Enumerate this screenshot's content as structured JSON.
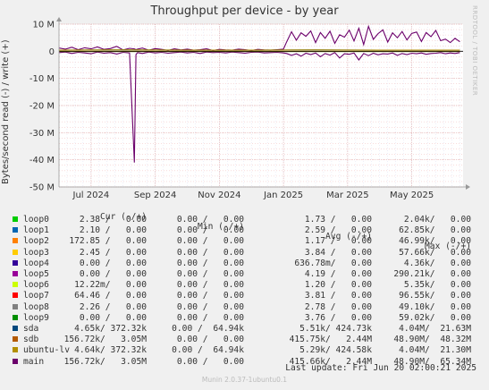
{
  "title": "Throughput per device - by year",
  "watermark": "RRDTOOL / TOBI OETIKER",
  "footer": "Munin 2.0.37-1ubuntu0.1",
  "last_update": "Last update: Fri Jun 20 02:00:21 2025",
  "legend_headers": {
    "cur": "Cur (-/+)",
    "min": "Min (-/+)",
    "avg": "Avg (-/+)",
    "max": "Max (-/+)"
  },
  "legend": [
    {
      "name": "loop0",
      "color": "#00cc00",
      "cur": "2.38 /   0.00",
      "min": "0.00 /   0.00",
      "avg": "1.73 /   0.00",
      "max": "2.04k/   0.00"
    },
    {
      "name": "loop1",
      "color": "#0066b3",
      "cur": "2.10 /   0.00",
      "min": "0.00 /   0.00",
      "avg": "2.59 /   0.00",
      "max": "62.85k/   0.00"
    },
    {
      "name": "loop2",
      "color": "#ff8000",
      "cur": "172.85 /   0.00",
      "min": "0.00 /   0.00",
      "avg": "1.17 /   0.00",
      "max": "46.99k/   0.00"
    },
    {
      "name": "loop3",
      "color": "#ffcc00",
      "cur": "2.45 /   0.00",
      "min": "0.00 /   0.00",
      "avg": "3.84 /   0.00",
      "max": "57.66k/   0.00"
    },
    {
      "name": "loop4",
      "color": "#330099",
      "cur": "0.00 /   0.00",
      "min": "0.00 /   0.00",
      "avg": "636.78m/   0.00",
      "max": "4.36k/   0.00"
    },
    {
      "name": "loop5",
      "color": "#990099",
      "cur": "0.00 /   0.00",
      "min": "0.00 /   0.00",
      "avg": "4.19 /   0.00",
      "max": "290.21k/   0.00"
    },
    {
      "name": "loop6",
      "color": "#ccff00",
      "cur": "12.22m/   0.00",
      "min": "0.00 /   0.00",
      "avg": "1.20 /   0.00",
      "max": "5.35k/   0.00"
    },
    {
      "name": "loop7",
      "color": "#ff0000",
      "cur": "64.46 /   0.00",
      "min": "0.00 /   0.00",
      "avg": "3.81 /   0.00",
      "max": "96.55k/   0.00"
    },
    {
      "name": "loop8",
      "color": "#808080",
      "cur": "2.26 /   0.00",
      "min": "0.00 /   0.00",
      "avg": "2.78 /   0.00",
      "max": "49.10k/   0.00"
    },
    {
      "name": "loop9",
      "color": "#008f00",
      "cur": "0.00 /   0.00",
      "min": "0.00 /   0.00",
      "avg": "3.76 /   0.00",
      "max": "59.02k/   0.00"
    },
    {
      "name": "sda",
      "color": "#00487d",
      "cur": "4.65k/ 372.32k",
      "min": "0.00 /  64.94k",
      "avg": "5.51k/ 424.73k",
      "max": "4.04M/  21.63M"
    },
    {
      "name": "sdb",
      "color": "#b35a00",
      "cur": "156.72k/   3.05M",
      "min": "0.00 /   0.00",
      "avg": "415.75k/   2.44M",
      "max": "48.90M/  48.32M"
    },
    {
      "name": "ubuntu-lv",
      "color": "#b38f00",
      "cur": "4.64k/ 372.32k",
      "min": "0.00 /  64.94k",
      "avg": "5.29k/ 424.58k",
      "max": "4.04M/  21.30M"
    },
    {
      "name": "main",
      "color": "#6b006b",
      "cur": "156.72k/   3.05M",
      "min": "0.00 /   0.00",
      "avg": "415.66k/   2.44M",
      "max": "48.90M/  65.34M"
    }
  ],
  "chart_data": {
    "type": "line",
    "title": "Throughput per device - by year",
    "ylabel": "Bytes/second read (-) / write (+)",
    "ylim": [
      -50,
      10
    ],
    "y_unit": "M",
    "y_ticks": [
      10,
      0,
      -10,
      -20,
      -30,
      -40,
      -50
    ],
    "y_tick_labels": [
      "10 M",
      "0",
      "-10 M",
      "-20 M",
      "-30 M",
      "-40 M",
      "-50 M"
    ],
    "x_range_months": [
      0,
      12.6
    ],
    "x_ticks": [
      1,
      3,
      5,
      7,
      9,
      11
    ],
    "x_tick_labels": [
      "Jul 2024",
      "Sep 2024",
      "Nov 2024",
      "Jan 2025",
      "Mar 2025",
      "May 2025"
    ],
    "grid": true,
    "series": [
      {
        "name": "main",
        "color": "#6b006b",
        "x": [
          0.0,
          0.2,
          0.4,
          0.6,
          0.8,
          1.0,
          1.2,
          1.4,
          1.6,
          1.8,
          2.0,
          2.2,
          2.35,
          2.4,
          2.45,
          2.6,
          2.8,
          3.0,
          3.2,
          3.4,
          3.6,
          3.8,
          4.0,
          4.2,
          4.4,
          4.6,
          4.8,
          5.0,
          5.2,
          5.4,
          5.6,
          5.8,
          6.0,
          6.2,
          6.4,
          6.6,
          6.8,
          7.0,
          7.1,
          7.25,
          7.4,
          7.55,
          7.7,
          7.85,
          8.0,
          8.15,
          8.3,
          8.45,
          8.6,
          8.75,
          8.9,
          9.05,
          9.2,
          9.35,
          9.5,
          9.65,
          9.8,
          9.95,
          10.1,
          10.25,
          10.4,
          10.55,
          10.7,
          10.85,
          11.0,
          11.15,
          11.3,
          11.45,
          11.6,
          11.75,
          11.9,
          12.05,
          12.2,
          12.35,
          12.5
        ],
        "write": [
          1.2,
          0.8,
          1.5,
          0.6,
          1.3,
          0.9,
          1.6,
          0.7,
          1.0,
          1.8,
          0.5,
          1.1,
          0.9,
          0.6,
          0.8,
          1.2,
          0.4,
          1.0,
          0.7,
          0.3,
          0.9,
          0.5,
          0.8,
          0.4,
          0.6,
          0.9,
          0.3,
          0.7,
          0.5,
          0.4,
          0.8,
          0.6,
          0.3,
          0.7,
          0.5,
          0.4,
          0.6,
          0.8,
          3.5,
          7.2,
          4.1,
          6.8,
          5.5,
          7.5,
          3.2,
          6.9,
          4.8,
          7.4,
          2.9,
          6.1,
          5.2,
          7.8,
          3.8,
          8.5,
          2.5,
          9.2,
          4.4,
          6.5,
          7.9,
          3.4,
          6.8,
          5.0,
          7.3,
          4.2,
          6.6,
          7.1,
          3.6,
          6.9,
          5.4,
          7.7,
          3.9,
          4.5,
          3.2,
          4.8,
          3.5
        ],
        "read": [
          -0.5,
          -0.3,
          -0.8,
          -0.4,
          -0.6,
          -0.9,
          -0.3,
          -0.7,
          -0.5,
          -1.0,
          -0.4,
          -0.6,
          -41.0,
          -1.2,
          -0.5,
          -0.8,
          -0.3,
          -0.6,
          -0.4,
          -0.7,
          -0.5,
          -0.3,
          -0.6,
          -0.4,
          -0.8,
          -0.3,
          -0.5,
          -0.4,
          -0.6,
          -0.3,
          -0.5,
          -0.7,
          -0.4,
          -0.3,
          -0.6,
          -0.5,
          -0.4,
          -0.6,
          -0.8,
          -1.5,
          -0.9,
          -1.8,
          -0.7,
          -1.2,
          -0.6,
          -2.0,
          -0.8,
          -1.4,
          -0.5,
          -2.5,
          -0.9,
          -1.1,
          -0.6,
          -3.2,
          -0.8,
          -1.6,
          -0.7,
          -1.3,
          -0.9,
          -1.0,
          -0.6,
          -1.5,
          -0.8,
          -1.2,
          -0.7,
          -0.9,
          -0.6,
          -1.1,
          -0.8,
          -0.7,
          -0.5,
          -0.9,
          -0.6,
          -0.8,
          -0.5
        ]
      },
      {
        "name": "sda",
        "color": "#00487d",
        "x": [
          0,
          2,
          4,
          6,
          8,
          10,
          12.5
        ],
        "write": [
          0.4,
          0.5,
          0.4,
          0.4,
          0.5,
          0.4,
          0.4
        ],
        "read": [
          -0.1,
          -0.1,
          -0.1,
          -0.1,
          -0.1,
          -0.1,
          -0.1
        ]
      },
      {
        "name": "ubuntu-lv",
        "color": "#b38f00",
        "x": [
          0,
          2,
          4,
          6,
          8,
          10,
          12.5
        ],
        "write": [
          0.4,
          0.5,
          0.4,
          0.4,
          0.5,
          0.4,
          0.4
        ],
        "read": [
          -0.1,
          -0.1,
          -0.1,
          -0.1,
          -0.1,
          -0.1,
          -0.1
        ]
      }
    ]
  }
}
